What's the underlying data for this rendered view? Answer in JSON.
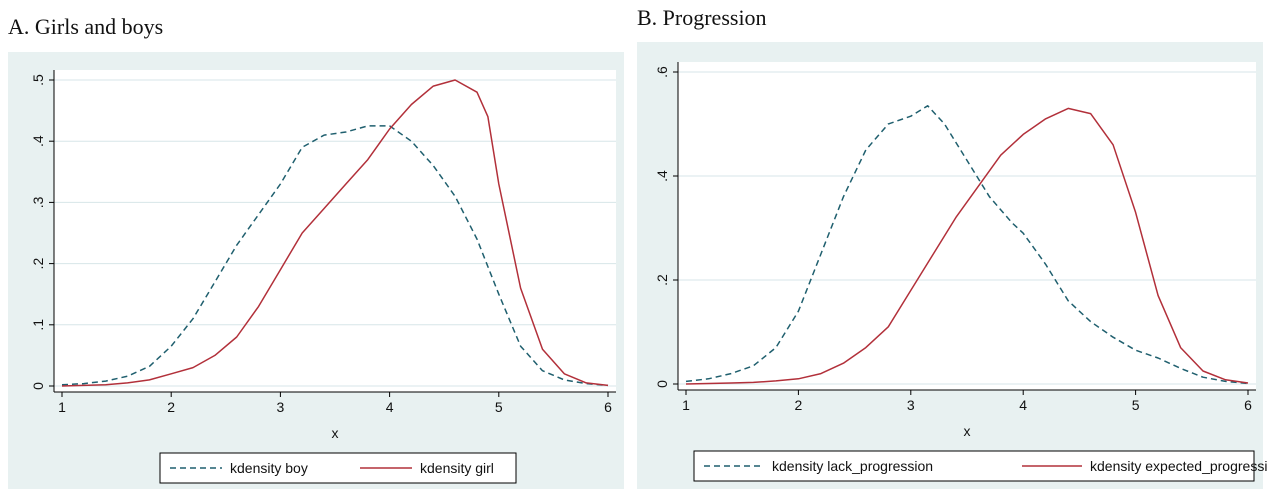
{
  "chart_data": [
    {
      "type": "line",
      "title": "A. Girls and boys",
      "xlabel": "x",
      "ylabel": "",
      "xlim": [
        1,
        6
      ],
      "ylim": [
        0,
        0.5
      ],
      "x_ticks": [
        1,
        2,
        3,
        4,
        5,
        6
      ],
      "x_tick_labels": [
        "1",
        "2",
        "3",
        "4",
        "5",
        "6"
      ],
      "y_ticks": [
        0,
        0.1,
        0.2,
        0.3,
        0.4,
        0.5
      ],
      "y_tick_labels": [
        "0",
        ".1",
        ".2",
        ".3",
        ".4",
        ".5"
      ],
      "grid": true,
      "legend_position": "bottom",
      "series": [
        {
          "name": "kdensity boy",
          "color": "#1f5f6e",
          "style": "dashed",
          "x": [
            1.0,
            1.2,
            1.4,
            1.6,
            1.8,
            2.0,
            2.2,
            2.4,
            2.6,
            2.8,
            3.0,
            3.2,
            3.4,
            3.6,
            3.8,
            4.0,
            4.2,
            4.4,
            4.6,
            4.8,
            5.0,
            5.2,
            5.4,
            5.6,
            5.8,
            6.0
          ],
          "y": [
            0.002,
            0.004,
            0.008,
            0.016,
            0.032,
            0.065,
            0.11,
            0.17,
            0.23,
            0.28,
            0.33,
            0.39,
            0.41,
            0.415,
            0.425,
            0.425,
            0.4,
            0.36,
            0.31,
            0.24,
            0.15,
            0.065,
            0.025,
            0.01,
            0.004,
            0.001
          ]
        },
        {
          "name": "kdensity girl",
          "color": "#b2303a",
          "style": "solid",
          "x": [
            1.0,
            1.2,
            1.4,
            1.6,
            1.8,
            2.0,
            2.2,
            2.4,
            2.6,
            2.8,
            3.0,
            3.2,
            3.4,
            3.6,
            3.8,
            4.0,
            4.2,
            4.4,
            4.6,
            4.8,
            4.9,
            5.0,
            5.2,
            5.4,
            5.6,
            5.8,
            6.0
          ],
          "y": [
            0.0,
            0.001,
            0.002,
            0.005,
            0.01,
            0.02,
            0.03,
            0.05,
            0.08,
            0.13,
            0.19,
            0.25,
            0.29,
            0.33,
            0.37,
            0.42,
            0.46,
            0.49,
            0.5,
            0.48,
            0.44,
            0.33,
            0.16,
            0.06,
            0.02,
            0.005,
            0.001
          ]
        }
      ]
    },
    {
      "type": "line",
      "title": "B. Progression",
      "xlabel": "x",
      "ylabel": "",
      "xlim": [
        1,
        6
      ],
      "ylim": [
        0,
        0.6
      ],
      "x_ticks": [
        1,
        2,
        3,
        4,
        5,
        6
      ],
      "x_tick_labels": [
        "1",
        "2",
        "3",
        "4",
        "5",
        "6"
      ],
      "y_ticks": [
        0,
        0.2,
        0.4,
        0.6
      ],
      "y_tick_labels": [
        "0",
        ".2",
        ".4",
        ".6"
      ],
      "grid": true,
      "legend_position": "bottom",
      "series": [
        {
          "name": "kdensity lack_progression",
          "color": "#1f5f6e",
          "style": "dashed",
          "x": [
            1.0,
            1.2,
            1.4,
            1.6,
            1.8,
            2.0,
            2.2,
            2.4,
            2.6,
            2.8,
            3.0,
            3.15,
            3.3,
            3.5,
            3.7,
            3.9,
            4.0,
            4.2,
            4.4,
            4.6,
            4.8,
            5.0,
            5.2,
            5.4,
            5.6,
            5.8,
            6.0
          ],
          "y": [
            0.005,
            0.01,
            0.02,
            0.035,
            0.07,
            0.14,
            0.25,
            0.36,
            0.45,
            0.5,
            0.515,
            0.535,
            0.5,
            0.43,
            0.36,
            0.31,
            0.29,
            0.23,
            0.16,
            0.12,
            0.09,
            0.065,
            0.05,
            0.03,
            0.013,
            0.005,
            0.001
          ]
        },
        {
          "name": "kdensity expected_progression",
          "color": "#b2303a",
          "style": "solid",
          "x": [
            1.0,
            1.2,
            1.4,
            1.6,
            1.8,
            2.0,
            2.2,
            2.4,
            2.6,
            2.8,
            3.0,
            3.2,
            3.4,
            3.6,
            3.8,
            4.0,
            4.2,
            4.4,
            4.6,
            4.8,
            5.0,
            5.2,
            5.4,
            5.6,
            5.8,
            6.0
          ],
          "y": [
            0.0,
            0.001,
            0.002,
            0.003,
            0.006,
            0.01,
            0.02,
            0.04,
            0.07,
            0.11,
            0.18,
            0.25,
            0.32,
            0.38,
            0.44,
            0.48,
            0.51,
            0.53,
            0.52,
            0.46,
            0.33,
            0.17,
            0.07,
            0.025,
            0.008,
            0.002
          ]
        }
      ]
    }
  ]
}
